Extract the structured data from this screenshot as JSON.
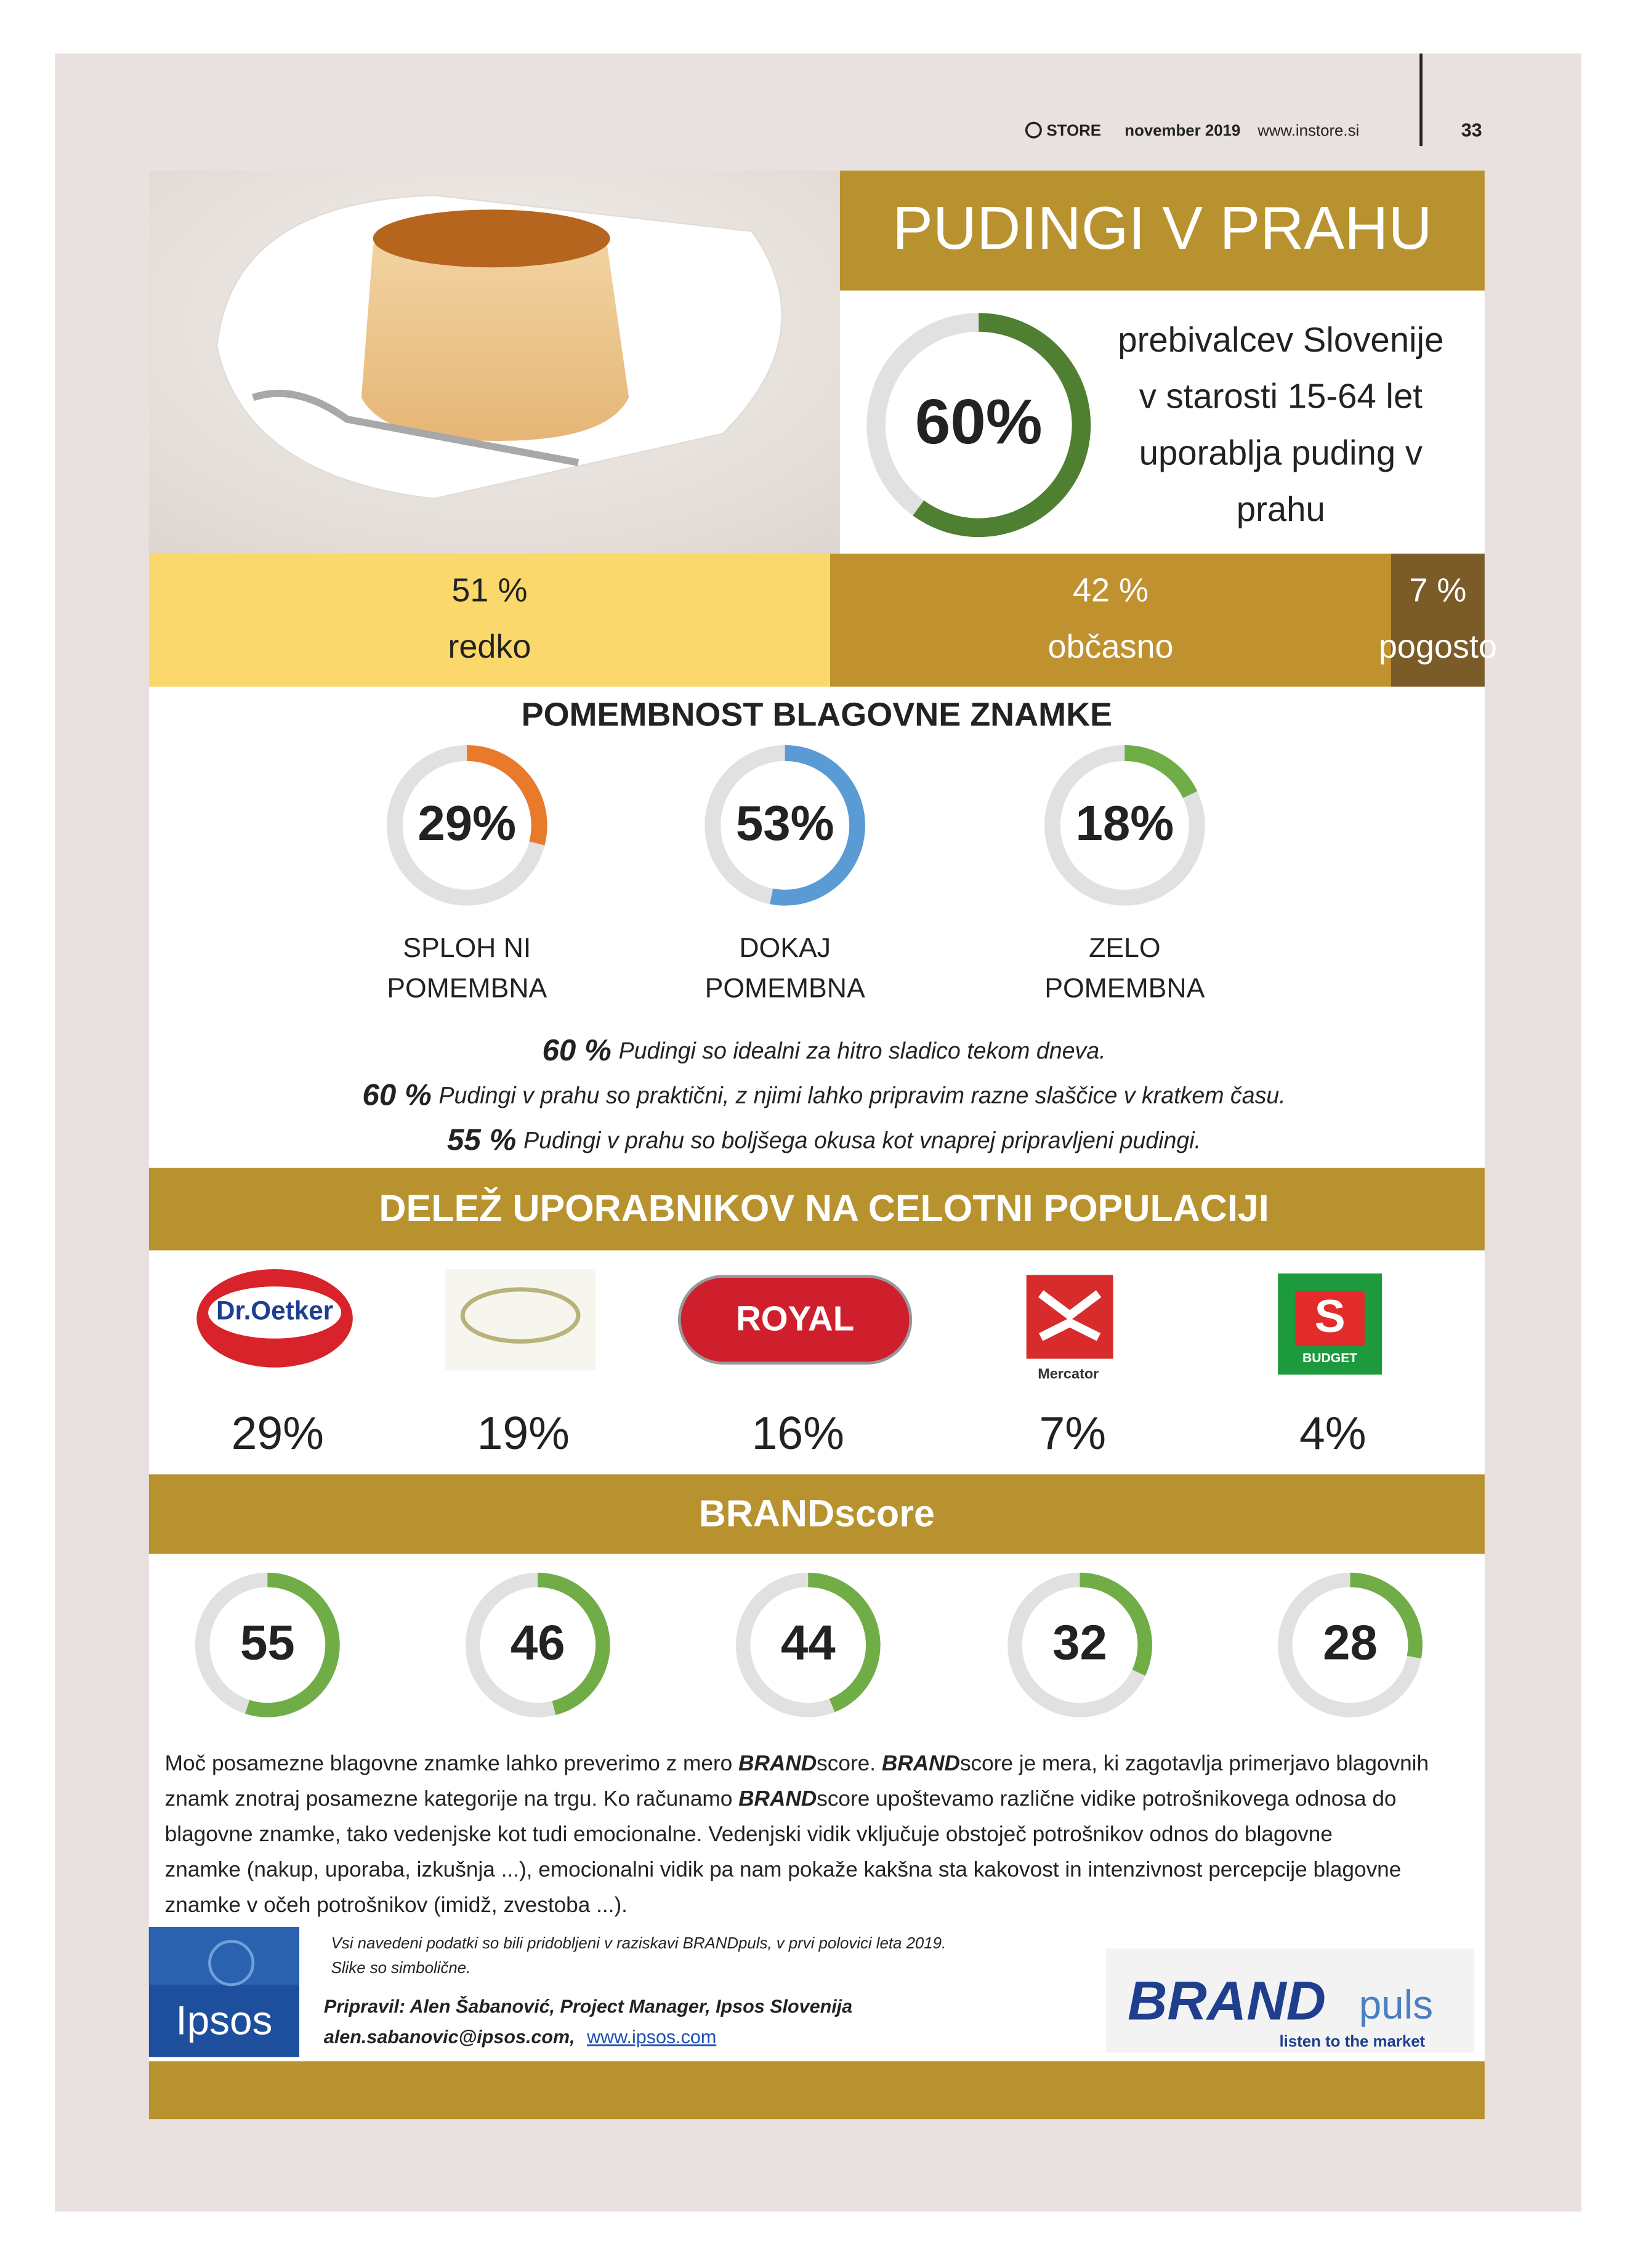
{
  "header": {
    "brand": "STORE",
    "issue": "november 2019",
    "site": "www.instore.si",
    "page": "33"
  },
  "title": "PUDINGI V PRAHU",
  "main_stat": {
    "value": 60,
    "label": "60%"
  },
  "main_text": [
    "prebivalcev Slovenije",
    "v starosti 15-64 let",
    "uporablja puding v",
    "prahu"
  ],
  "frequency": [
    {
      "value": 51,
      "label": "51 %",
      "name": "redko",
      "color": "#fbd86b"
    },
    {
      "value": 42,
      "label": "42 %",
      "name": "občasno",
      "color": "#c0912f"
    },
    {
      "value": 7,
      "label": "7 %",
      "name": "pogosto",
      "color": "#7b5b27"
    }
  ],
  "importance": {
    "title": "POMEMBNOST BLAGOVNE ZNAMKE",
    "items": [
      {
        "value": 29,
        "label": "29%",
        "name": [
          "SPLOH NI",
          "POMEMBNA"
        ],
        "color": "#e9792b"
      },
      {
        "value": 53,
        "label": "53%",
        "name": [
          "DOKAJ",
          "POMEMBNA"
        ],
        "color": "#5b9bd5"
      },
      {
        "value": 18,
        "label": "18%",
        "name": [
          "ZELO",
          "POMEMBNA"
        ],
        "color": "#70ad47"
      }
    ]
  },
  "statements": [
    {
      "value": "60 %",
      "text": "Pudingi so idealni za hitro sladico tekom dneva."
    },
    {
      "value": "60 %",
      "text": "Pudingi v prahu so praktični, z njimi lahko pripravim razne slaščice v kratkem času."
    },
    {
      "value": "55 %",
      "text": "Pudingi v prahu so boljšega okusa kot vnaprej pripravljeni pudingi."
    }
  ],
  "share": {
    "title": "DELEŽ UPORABNIKOV NA CELOTNI POPULACIJI",
    "brands": [
      {
        "logo": "Dr.Oetker",
        "value": "29%"
      },
      {
        "value": "19%"
      },
      {
        "logo": "ROYAL",
        "value": "16%"
      },
      {
        "logo": "Mercator",
        "value": "7%"
      },
      {
        "logo": "S",
        "logo_sub": "BUDGET",
        "value": "4%"
      }
    ]
  },
  "brandscore": {
    "title": "BRANDscore",
    "values": [
      55,
      46,
      44,
      32,
      28
    ],
    "color": "#70ad47"
  },
  "paragraph": [
    [
      "Moč posamezne blagovne znamke lahko preverimo z mero ",
      "BRAND",
      "score. ",
      "BRAND",
      "score je mera, ki zagotavlja primerjavo blagovnih"
    ],
    [
      "znamk znotraj posamezne kategorije na trgu. Ko računamo ",
      "BRAND",
      "score upoštevamo različne vidike potrošnikovega odnosa do"
    ],
    [
      "blagovne znamke, tako vedenjske kot tudi emocionalne. Vedenjski vidik vključuje obstoječ potrošnikov odnos do blagovne"
    ],
    [
      "znamke (nakup, uporaba, izkušnja ...), emocionalni vidik pa nam pokaže kakšna sta kakovost in intenzivnost percepcije blagovne"
    ],
    [
      "znamke v očeh potrošnikov (imidž, zvestoba ...)."
    ]
  ],
  "footer": {
    "note": [
      "Vsi navedeni podatki so bili pridobljeni v raziskavi BRANDpuls, v prvi polovici leta 2019.",
      "Slike so simbolične."
    ],
    "author": "Pripravil: Alen Šabanović, Project Manager, Ipsos Slovenija",
    "email": "alen.sabanovic@ipsos.com,",
    "link": "www.ipsos.com",
    "ipsos": "Ipsos",
    "brandpuls": {
      "a": "BRAND",
      "b": "puls",
      "tag": "listen to the market"
    }
  }
}
